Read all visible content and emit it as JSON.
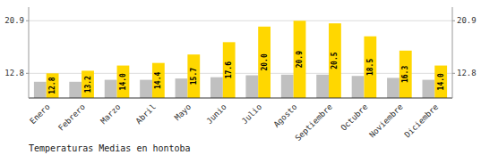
{
  "chart_data": {
    "type": "bar",
    "title": "Temperaturas Medias en hontoba",
    "categories": [
      "Enero",
      "Febrero",
      "Marzo",
      "Abril",
      "Mayo",
      "Junio",
      "Julio",
      "Agosto",
      "Septiembre",
      "Octubre",
      "Noviembre",
      "Diciembre"
    ],
    "series": [
      {
        "color": "#C0C0C0",
        "values": [
          11.5,
          11.5,
          11.8,
          11.8,
          12.0,
          12.2,
          12.5,
          12.6,
          12.6,
          12.4,
          12.1,
          11.8
        ]
      },
      {
        "color": "#FFD700",
        "values": [
          12.8,
          13.2,
          14.0,
          14.4,
          15.7,
          17.6,
          20.0,
          20.9,
          20.5,
          18.5,
          16.3,
          14.0
        ],
        "data_labels": true,
        "value_labels": [
          "12.8",
          "13.2",
          "14.0",
          "14.4",
          "15.7",
          "17.6",
          "20.0",
          "20.9",
          "20.5",
          "18.5",
          "16.3",
          "14.0"
        ]
      }
    ],
    "ylim": [
      9.0,
      23.0
    ],
    "yticks": [
      12.8,
      20.9
    ],
    "y2lim": [
      9.0,
      23.0
    ],
    "y2ticks": [
      12.8,
      20.9
    ],
    "grid": true
  }
}
